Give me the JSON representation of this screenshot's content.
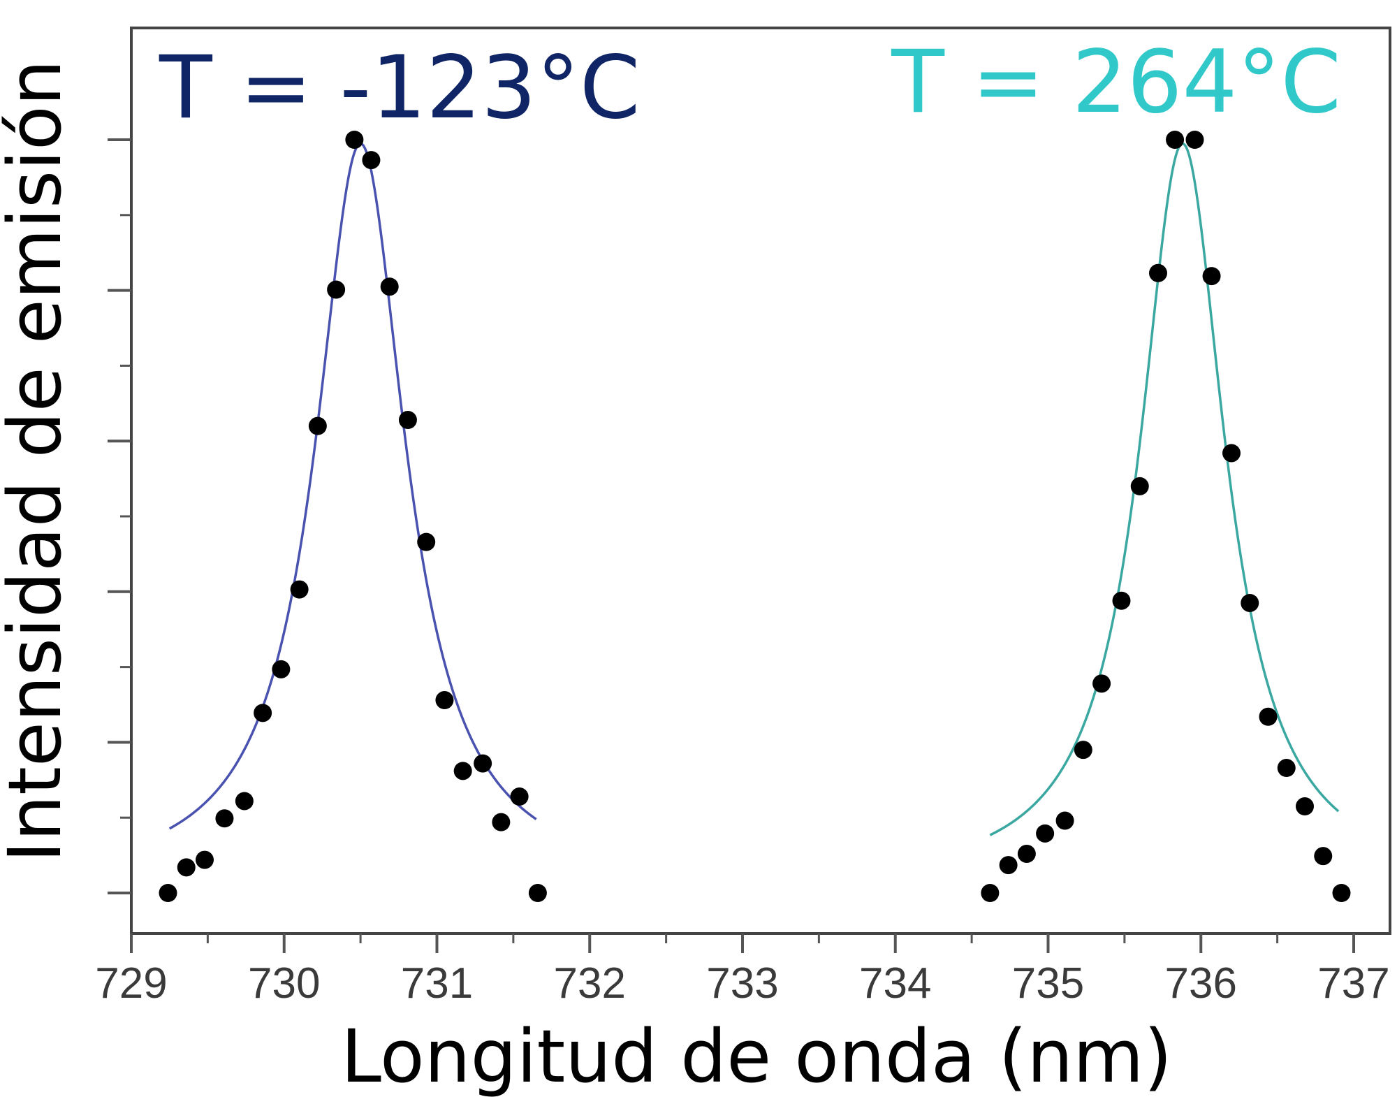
{
  "chart_data": {
    "type": "scatter",
    "xlabel": "Longitud de onda (nm)",
    "ylabel": "Intensidad de emisión",
    "xlim": [
      729,
      737
    ],
    "ylim": [
      0,
      1.0
    ],
    "x_ticks": [
      "729",
      "730",
      "731",
      "732",
      "733",
      "734",
      "735",
      "736",
      "737"
    ],
    "y_ticks_labeled": false,
    "grid": false,
    "series": [
      {
        "name": "T = -123°C",
        "color": "#0f2566",
        "fit_color": "#4a52b0",
        "fit_center": 730.5,
        "fit_width": 0.36,
        "fit_range": [
          729.25,
          731.65
        ],
        "points": [
          {
            "x": 729.24,
            "y": 0.0
          },
          {
            "x": 729.36,
            "y": 0.034
          },
          {
            "x": 729.48,
            "y": 0.044
          },
          {
            "x": 729.61,
            "y": 0.099
          },
          {
            "x": 729.74,
            "y": 0.122
          },
          {
            "x": 729.86,
            "y": 0.239
          },
          {
            "x": 729.98,
            "y": 0.297
          },
          {
            "x": 730.1,
            "y": 0.403
          },
          {
            "x": 730.22,
            "y": 0.62
          },
          {
            "x": 730.34,
            "y": 0.801
          },
          {
            "x": 730.46,
            "y": 1.0
          },
          {
            "x": 730.57,
            "y": 0.973
          },
          {
            "x": 730.69,
            "y": 0.805
          },
          {
            "x": 730.81,
            "y": 0.628
          },
          {
            "x": 730.93,
            "y": 0.466
          },
          {
            "x": 731.05,
            "y": 0.256
          },
          {
            "x": 731.17,
            "y": 0.162
          },
          {
            "x": 731.3,
            "y": 0.172
          },
          {
            "x": 731.42,
            "y": 0.094
          },
          {
            "x": 731.54,
            "y": 0.128
          },
          {
            "x": 731.66,
            "y": 0.0
          }
        ]
      },
      {
        "name": "T = 264°C",
        "color": "#30c8c8",
        "fit_color": "#3aa8a0",
        "fit_center": 735.88,
        "fit_width": 0.34,
        "fit_range": [
          734.62,
          736.9
        ],
        "points": [
          {
            "x": 734.62,
            "y": 0.0
          },
          {
            "x": 734.74,
            "y": 0.037
          },
          {
            "x": 734.86,
            "y": 0.052
          },
          {
            "x": 734.98,
            "y": 0.079
          },
          {
            "x": 735.11,
            "y": 0.096
          },
          {
            "x": 735.23,
            "y": 0.19
          },
          {
            "x": 735.35,
            "y": 0.278
          },
          {
            "x": 735.48,
            "y": 0.388
          },
          {
            "x": 735.6,
            "y": 0.54
          },
          {
            "x": 735.72,
            "y": 0.823
          },
          {
            "x": 735.83,
            "y": 1.0
          },
          {
            "x": 735.96,
            "y": 1.0
          },
          {
            "x": 736.07,
            "y": 0.819
          },
          {
            "x": 736.2,
            "y": 0.584
          },
          {
            "x": 736.32,
            "y": 0.385
          },
          {
            "x": 736.44,
            "y": 0.234
          },
          {
            "x": 736.56,
            "y": 0.166
          },
          {
            "x": 736.68,
            "y": 0.115
          },
          {
            "x": 736.8,
            "y": 0.049
          },
          {
            "x": 736.92,
            "y": 0.0
          }
        ]
      }
    ]
  }
}
